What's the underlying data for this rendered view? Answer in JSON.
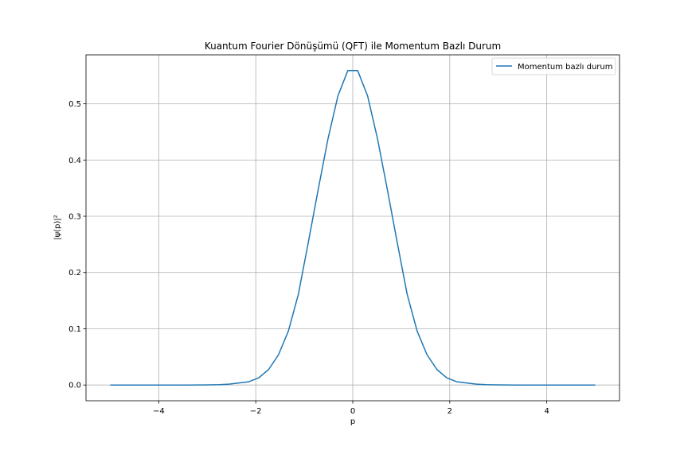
{
  "chart_data": {
    "type": "line",
    "title": "Kuantum Fourier Dönüşümü (QFT) ile Momentum Bazlı Durum",
    "xlabel": "p",
    "ylabel": "|ψ(p)|²",
    "xlim": [
      -5.5,
      5.5
    ],
    "ylim": [
      -0.028,
      0.587
    ],
    "xticks": [
      -4,
      -2,
      0,
      2,
      4
    ],
    "xtick_labels": [
      "−4",
      "−2",
      "0",
      "2",
      "4"
    ],
    "yticks": [
      0.0,
      0.1,
      0.2,
      0.3,
      0.4,
      0.5
    ],
    "ytick_labels": [
      "0.0",
      "0.1",
      "0.2",
      "0.3",
      "0.4",
      "0.5"
    ],
    "grid": true,
    "legend_position": "top-right",
    "series": [
      {
        "name": "Momentum bazlı durum",
        "color": "#1f77b4",
        "x": [
          -5.0,
          -4.796,
          -4.592,
          -4.388,
          -4.184,
          -3.98,
          -3.776,
          -3.571,
          -3.367,
          -3.163,
          -2.959,
          -2.755,
          -2.551,
          -2.347,
          -2.143,
          -1.939,
          -1.735,
          -1.531,
          -1.327,
          -1.122,
          -0.918,
          -0.714,
          -0.51,
          -0.306,
          -0.102,
          0.102,
          0.306,
          0.51,
          0.714,
          0.918,
          1.122,
          1.327,
          1.531,
          1.735,
          1.939,
          2.143,
          2.347,
          2.551,
          2.755,
          2.959,
          3.163,
          3.367,
          3.571,
          3.776,
          3.98,
          4.184,
          4.388,
          4.592,
          4.796,
          5.0
        ],
        "y": [
          0.0,
          0.0,
          0.0,
          0.0,
          0.0,
          0.0,
          0.0,
          0.0,
          0.0,
          0.0001,
          0.0002,
          0.0006,
          0.0015,
          0.0036,
          0.0058,
          0.0128,
          0.0275,
          0.0538,
          0.096,
          0.1612,
          0.253,
          0.347,
          0.438,
          0.514,
          0.559,
          0.559,
          0.514,
          0.438,
          0.347,
          0.253,
          0.1612,
          0.096,
          0.0538,
          0.0275,
          0.0128,
          0.0058,
          0.0036,
          0.0015,
          0.0006,
          0.0002,
          0.0001,
          0.0,
          0.0,
          0.0,
          0.0,
          0.0,
          0.0,
          0.0,
          0.0,
          0.0
        ]
      }
    ]
  }
}
